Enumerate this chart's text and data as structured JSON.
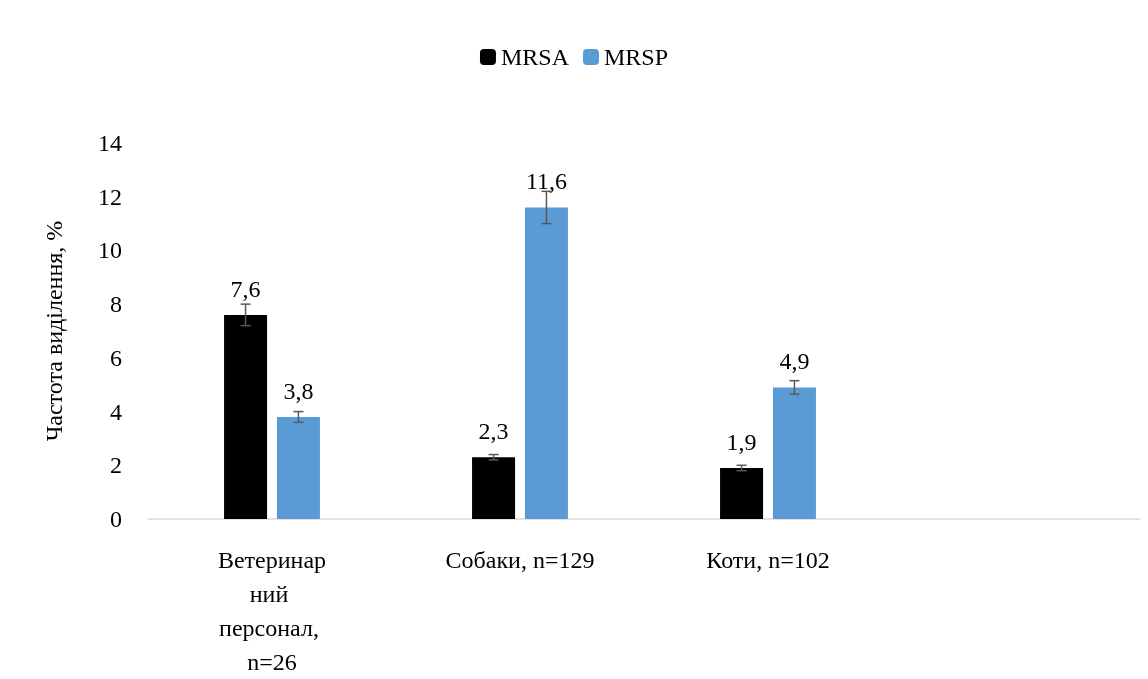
{
  "chart_data": {
    "type": "bar",
    "categories": [
      "Ветеринарний персонал, n=26",
      "Собаки, n=129",
      "Коти, n=102",
      null
    ],
    "ylabel": "Частота виділення, %",
    "series": [
      {
        "name": "MRSA",
        "color": "#000000",
        "values": [
          7.6,
          2.3,
          1.9,
          null
        ],
        "value_labels": [
          "7,6",
          "2,3",
          "1,9",
          null
        ],
        "errors": [
          0.4,
          0.1,
          0.1,
          null
        ]
      },
      {
        "name": "MRSP",
        "color": "#5b9bd5",
        "values": [
          3.8,
          11.6,
          4.9,
          null
        ],
        "value_labels": [
          "3,8",
          "11,6",
          "4,9",
          null
        ],
        "errors": [
          0.2,
          0.6,
          0.25,
          null
        ]
      }
    ],
    "ylim": [
      0,
      14
    ],
    "yticks": [
      0,
      2,
      4,
      6,
      8,
      10,
      12,
      14
    ],
    "grid": false,
    "legend": "top"
  }
}
